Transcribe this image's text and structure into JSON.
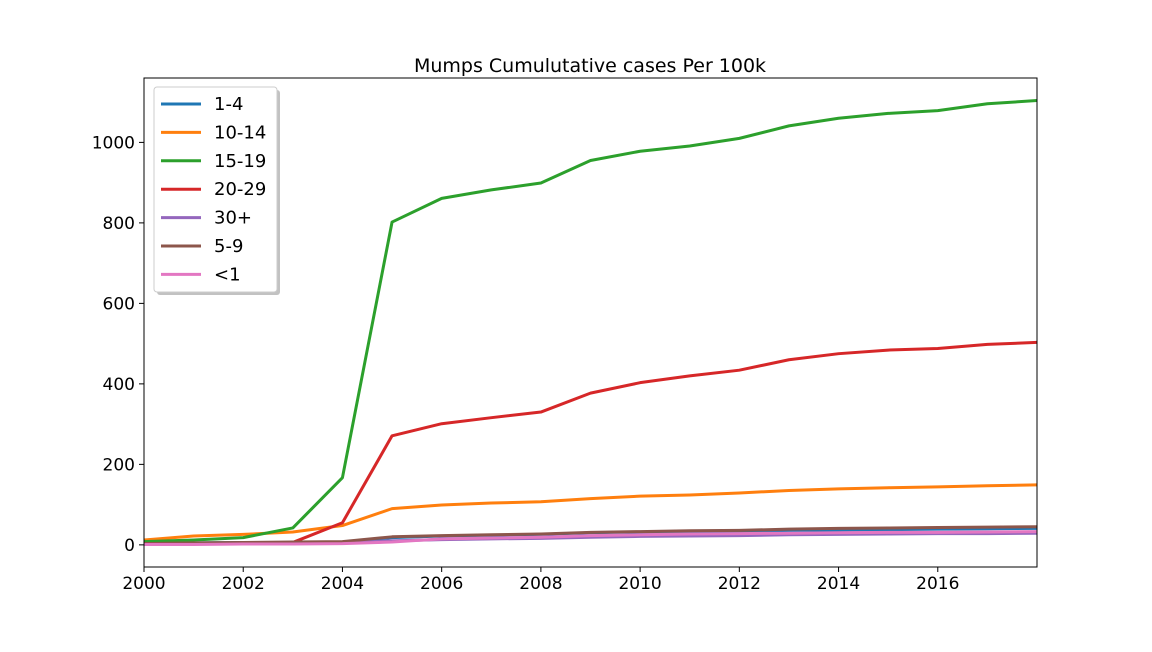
{
  "chart_data": {
    "type": "line",
    "title": "Mumps Cumulutative cases Per 100k",
    "xlabel": "",
    "ylabel": "",
    "xlim": [
      2000,
      2018
    ],
    "ylim": [
      -55,
      1160
    ],
    "x_ticks": [
      2000,
      2002,
      2004,
      2006,
      2008,
      2010,
      2012,
      2014,
      2016
    ],
    "y_ticks": [
      0,
      200,
      400,
      600,
      800,
      1000
    ],
    "grid": false,
    "legend_position": "upper-left",
    "x": [
      2000,
      2001,
      2002,
      2003,
      2004,
      2005,
      2006,
      2007,
      2008,
      2009,
      2010,
      2011,
      2012,
      2013,
      2014,
      2015,
      2016,
      2017,
      2018
    ],
    "series": [
      {
        "name": "1-4",
        "color": "#1f77b4",
        "values": [
          3,
          5,
          6,
          6,
          7,
          18,
          22,
          24,
          26,
          30,
          32,
          33,
          34,
          36,
          37,
          38,
          39,
          40,
          41
        ]
      },
      {
        "name": "10-14",
        "color": "#ff7f0e",
        "values": [
          12,
          22,
          26,
          32,
          48,
          90,
          99,
          104,
          107,
          115,
          121,
          124,
          129,
          135,
          139,
          142,
          144,
          147,
          149
        ]
      },
      {
        "name": "15-19",
        "color": "#2ca02c",
        "values": [
          8,
          12,
          18,
          42,
          167,
          802,
          861,
          882,
          899,
          955,
          978,
          991,
          1010,
          1041,
          1060,
          1072,
          1079,
          1096,
          1104
        ]
      },
      {
        "name": "20-29",
        "color": "#d62728",
        "values": [
          3,
          4,
          4,
          6,
          55,
          271,
          301,
          316,
          330,
          377,
          403,
          420,
          434,
          460,
          475,
          484,
          488,
          498,
          503
        ]
      },
      {
        "name": "30+",
        "color": "#9467bd",
        "values": [
          2,
          2,
          3,
          4,
          5,
          10,
          13,
          15,
          16,
          19,
          21,
          22,
          23,
          25,
          26,
          27,
          28,
          28,
          29
        ]
      },
      {
        "name": "5-9",
        "color": "#8c564b",
        "values": [
          3,
          5,
          6,
          7,
          8,
          20,
          23,
          25,
          27,
          31,
          33,
          35,
          36,
          39,
          41,
          42,
          43,
          44,
          45
        ]
      },
      {
        "name": "<1",
        "color": "#e377c2",
        "values": [
          1,
          1,
          2,
          2,
          3,
          7,
          15,
          17,
          19,
          23,
          25,
          27,
          28,
          29,
          30,
          31,
          31,
          32,
          33
        ]
      }
    ]
  }
}
